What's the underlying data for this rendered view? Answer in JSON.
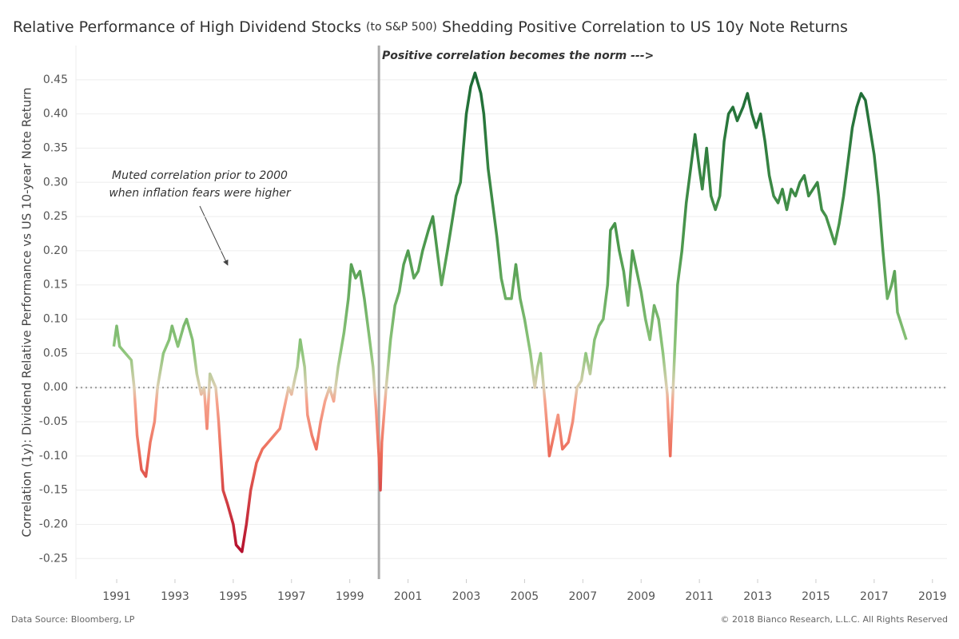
{
  "chart_data": {
    "type": "line",
    "title": [
      "Relative Performance of High Dividend Stocks",
      "(to S&P 500)",
      "Shedding Positive Correlation to US 10y Note Returns"
    ],
    "y_label": "Correlation (1y): Dividend Relative Performance vs US 10-year Note Return",
    "annotations": [
      "Positive correlation becomes the norm --->",
      "Muted correlation prior to 2000",
      "when inflation fears were higher"
    ],
    "source": "Data Source: Bloomberg, LP",
    "copyright": "© 2018 Bianco Research, L.L.C. All Rights Reserved",
    "x": [
      1990.9,
      1991.0,
      1991.1,
      1991.3,
      1991.5,
      1991.6,
      1991.7,
      1991.85,
      1992.0,
      1992.15,
      1992.3,
      1992.4,
      1992.6,
      1992.8,
      1992.9,
      1993.1,
      1993.3,
      1993.4,
      1993.6,
      1993.75,
      1993.9,
      1994.0,
      1994.1,
      1994.2,
      1994.4,
      1994.5,
      1994.65,
      1994.8,
      1995.0,
      1995.1,
      1995.3,
      1995.45,
      1995.6,
      1995.8,
      1996.0,
      1996.2,
      1996.4,
      1996.6,
      1996.75,
      1996.9,
      1997.0,
      1997.2,
      1997.3,
      1997.45,
      1997.55,
      1997.7,
      1997.85,
      1998.0,
      1998.15,
      1998.3,
      1998.45,
      1998.6,
      1998.8,
      1998.95,
      1999.05,
      1999.2,
      1999.35,
      1999.5,
      1999.65,
      1999.8,
      1999.9,
      2000.0,
      2000.05,
      2000.1,
      2000.25,
      2000.4,
      2000.55,
      2000.7,
      2000.85,
      2001.0,
      2001.2,
      2001.35,
      2001.5,
      2001.7,
      2001.85,
      2002.0,
      2002.15,
      2002.35,
      2002.5,
      2002.65,
      2002.8,
      2002.9,
      2003.0,
      2003.15,
      2003.3,
      2003.5,
      2003.6,
      2003.75,
      2003.9,
      2004.05,
      2004.2,
      2004.35,
      2004.55,
      2004.7,
      2004.85,
      2005.0,
      2005.2,
      2005.35,
      2005.45,
      2005.55,
      2005.7,
      2005.85,
      2006.0,
      2006.15,
      2006.3,
      2006.5,
      2006.65,
      2006.8,
      2006.95,
      2007.1,
      2007.25,
      2007.4,
      2007.55,
      2007.7,
      2007.85,
      2007.95,
      2008.1,
      2008.25,
      2008.4,
      2008.55,
      2008.7,
      2008.85,
      2009.0,
      2009.15,
      2009.3,
      2009.45,
      2009.6,
      2009.75,
      2009.9,
      2010.0,
      2010.1,
      2010.25,
      2010.4,
      2010.55,
      2010.7,
      2010.85,
      2011.0,
      2011.1,
      2011.25,
      2011.4,
      2011.55,
      2011.7,
      2011.85,
      2012.0,
      2012.15,
      2012.3,
      2012.5,
      2012.65,
      2012.8,
      2012.95,
      2013.1,
      2013.25,
      2013.4,
      2013.55,
      2013.7,
      2013.85,
      2014.0,
      2014.15,
      2014.3,
      2014.45,
      2014.6,
      2014.75,
      2014.9,
      2015.05,
      2015.2,
      2015.35,
      2015.5,
      2015.65,
      2015.8,
      2015.95,
      2016.1,
      2016.25,
      2016.4,
      2016.55,
      2016.7,
      2016.85,
      2017.0,
      2017.15,
      2017.3,
      2017.45,
      2017.6,
      2017.7,
      2017.8,
      2017.95,
      2018.1
    ],
    "values": [
      0.06,
      0.09,
      0.06,
      0.05,
      0.04,
      0.0,
      -0.07,
      -0.12,
      -0.13,
      -0.08,
      -0.05,
      0.0,
      0.05,
      0.07,
      0.09,
      0.06,
      0.09,
      0.1,
      0.07,
      0.02,
      -0.01,
      0.0,
      -0.06,
      0.02,
      0.0,
      -0.05,
      -0.15,
      -0.17,
      -0.2,
      -0.23,
      -0.24,
      -0.2,
      -0.15,
      -0.11,
      -0.09,
      -0.08,
      -0.07,
      -0.06,
      -0.03,
      0.0,
      -0.01,
      0.03,
      0.07,
      0.03,
      -0.04,
      -0.07,
      -0.09,
      -0.05,
      -0.02,
      0.0,
      -0.02,
      0.03,
      0.08,
      0.13,
      0.18,
      0.16,
      0.17,
      0.13,
      0.08,
      0.03,
      -0.03,
      -0.1,
      -0.15,
      -0.08,
      0.0,
      0.07,
      0.12,
      0.14,
      0.18,
      0.2,
      0.16,
      0.17,
      0.2,
      0.23,
      0.25,
      0.2,
      0.15,
      0.2,
      0.24,
      0.28,
      0.3,
      0.35,
      0.4,
      0.44,
      0.46,
      0.43,
      0.4,
      0.32,
      0.27,
      0.22,
      0.16,
      0.13,
      0.13,
      0.18,
      0.13,
      0.1,
      0.05,
      0.0,
      0.03,
      0.05,
      -0.02,
      -0.1,
      -0.07,
      -0.04,
      -0.09,
      -0.08,
      -0.05,
      0.0,
      0.01,
      0.05,
      0.02,
      0.07,
      0.09,
      0.1,
      0.15,
      0.23,
      0.24,
      0.2,
      0.17,
      0.12,
      0.2,
      0.17,
      0.14,
      0.1,
      0.07,
      0.12,
      0.1,
      0.05,
      -0.01,
      -0.1,
      0.0,
      0.15,
      0.2,
      0.27,
      0.32,
      0.37,
      0.32,
      0.29,
      0.35,
      0.28,
      0.26,
      0.28,
      0.36,
      0.4,
      0.41,
      0.39,
      0.41,
      0.43,
      0.4,
      0.38,
      0.4,
      0.36,
      0.31,
      0.28,
      0.27,
      0.29,
      0.26,
      0.29,
      0.28,
      0.3,
      0.31,
      0.28,
      0.29,
      0.3,
      0.26,
      0.25,
      0.23,
      0.21,
      0.24,
      0.28,
      0.33,
      0.38,
      0.41,
      0.43,
      0.42,
      0.38,
      0.34,
      0.28,
      0.2,
      0.13,
      0.15,
      0.17,
      0.11,
      0.09,
      0.07
    ],
    "color_scale": [
      {
        "value": 0.45,
        "color": "#1c6a35"
      },
      {
        "value": 0.2,
        "color": "#4f9b4f"
      },
      {
        "value": 0.05,
        "color": "#8fc67c"
      },
      {
        "value": 0.0,
        "color": "#dccfb2"
      },
      {
        "value": -0.02,
        "color": "#f6a48e"
      },
      {
        "value": -0.1,
        "color": "#ec6a58"
      },
      {
        "value": -0.24,
        "color": "#b40f2d"
      }
    ],
    "xlim": [
      1989.6,
      2019.5
    ],
    "xticks": [
      1991,
      1993,
      1995,
      1997,
      1999,
      2001,
      2003,
      2005,
      2007,
      2009,
      2011,
      2013,
      2015,
      2017,
      2019
    ],
    "ylim": [
      -0.28,
      0.5
    ],
    "yticks": [
      0.45,
      {
        "value": 0.4,
        "label": "0.40"
      },
      0.35,
      {
        "value": 0.3,
        "label": "0.30"
      },
      0.25,
      {
        "value": 0.2,
        "label": "0.20"
      },
      0.15,
      {
        "value": 0.1,
        "label": "0.10"
      },
      0.05,
      {
        "value": 0,
        "label": "0.00"
      },
      -0.05,
      {
        "value": -0.1,
        "label": "-0.10"
      },
      -0.15,
      {
        "value": -0.2,
        "label": "-0.20"
      },
      -0.25
    ],
    "reference_line": 0,
    "vline_x": 2000,
    "grid": true
  }
}
